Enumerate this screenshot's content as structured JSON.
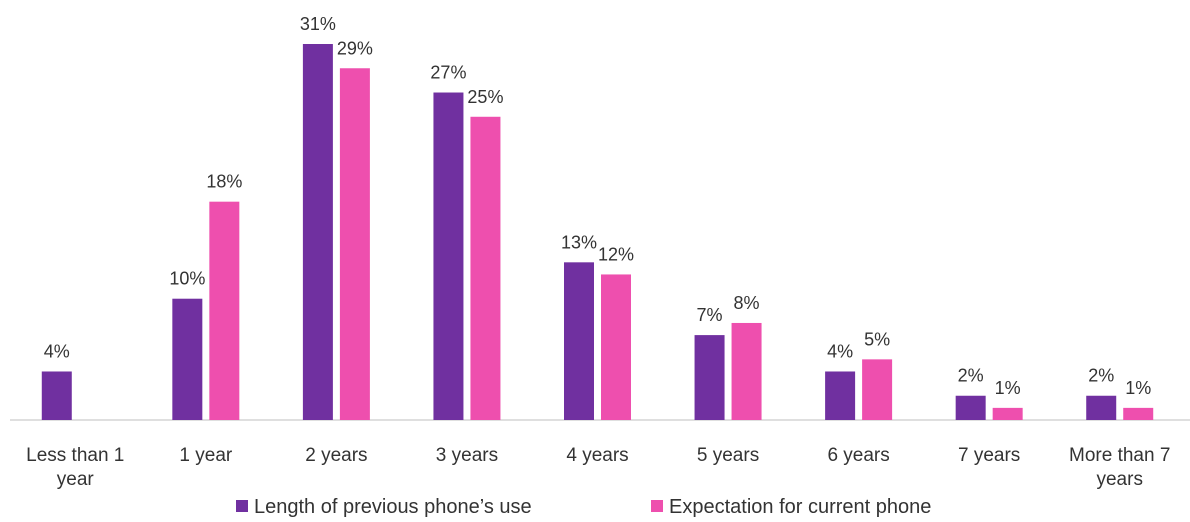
{
  "chart_data": {
    "type": "bar",
    "categories": [
      "Less than 1 year",
      "1 year",
      "2 years",
      "3 years",
      "4 years",
      "5 years",
      "6 years",
      "7 years",
      "More than 7 years"
    ],
    "series": [
      {
        "name": "Length of previous phone’s use",
        "color": "#7030a0",
        "values": [
          4,
          10,
          31,
          27,
          13,
          7,
          4,
          2,
          2
        ],
        "value_labels": [
          "4%",
          "10%",
          "31%",
          "27%",
          "13%",
          "7%",
          "4%",
          "2%",
          "2%"
        ]
      },
      {
        "name": "Expectation for current phone",
        "color": "#ee4fae",
        "values": [
          null,
          18,
          29,
          25,
          12,
          8,
          5,
          1,
          1
        ],
        "value_labels": [
          null,
          "18%",
          "29%",
          "25%",
          "12%",
          "8%",
          "5%",
          "1%",
          "1%"
        ]
      }
    ],
    "ylim": [
      0,
      31
    ],
    "legend": "bottom"
  }
}
